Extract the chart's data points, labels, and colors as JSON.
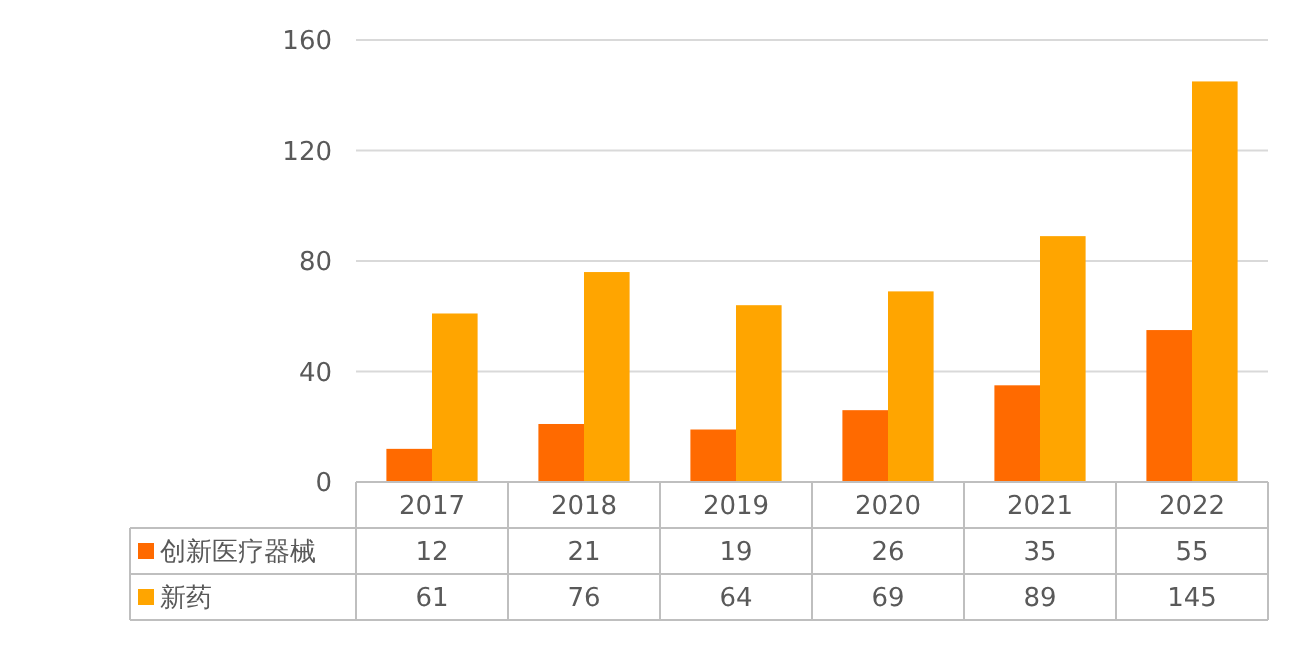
{
  "chart_data": {
    "type": "bar",
    "categories": [
      "2017",
      "2018",
      "2019",
      "2020",
      "2021",
      "2022"
    ],
    "series": [
      {
        "name": "创新医疗器械",
        "color": "#ff6a00",
        "values": [
          12,
          21,
          19,
          26,
          35,
          55
        ]
      },
      {
        "name": "新药",
        "color": "#ffa500",
        "values": [
          61,
          76,
          64,
          69,
          89,
          145
        ]
      }
    ],
    "ylim": [
      0,
      160
    ],
    "yticks": [
      0,
      40,
      80,
      120,
      160
    ],
    "grid": "y",
    "data_labels": true,
    "legend": "bottom"
  }
}
